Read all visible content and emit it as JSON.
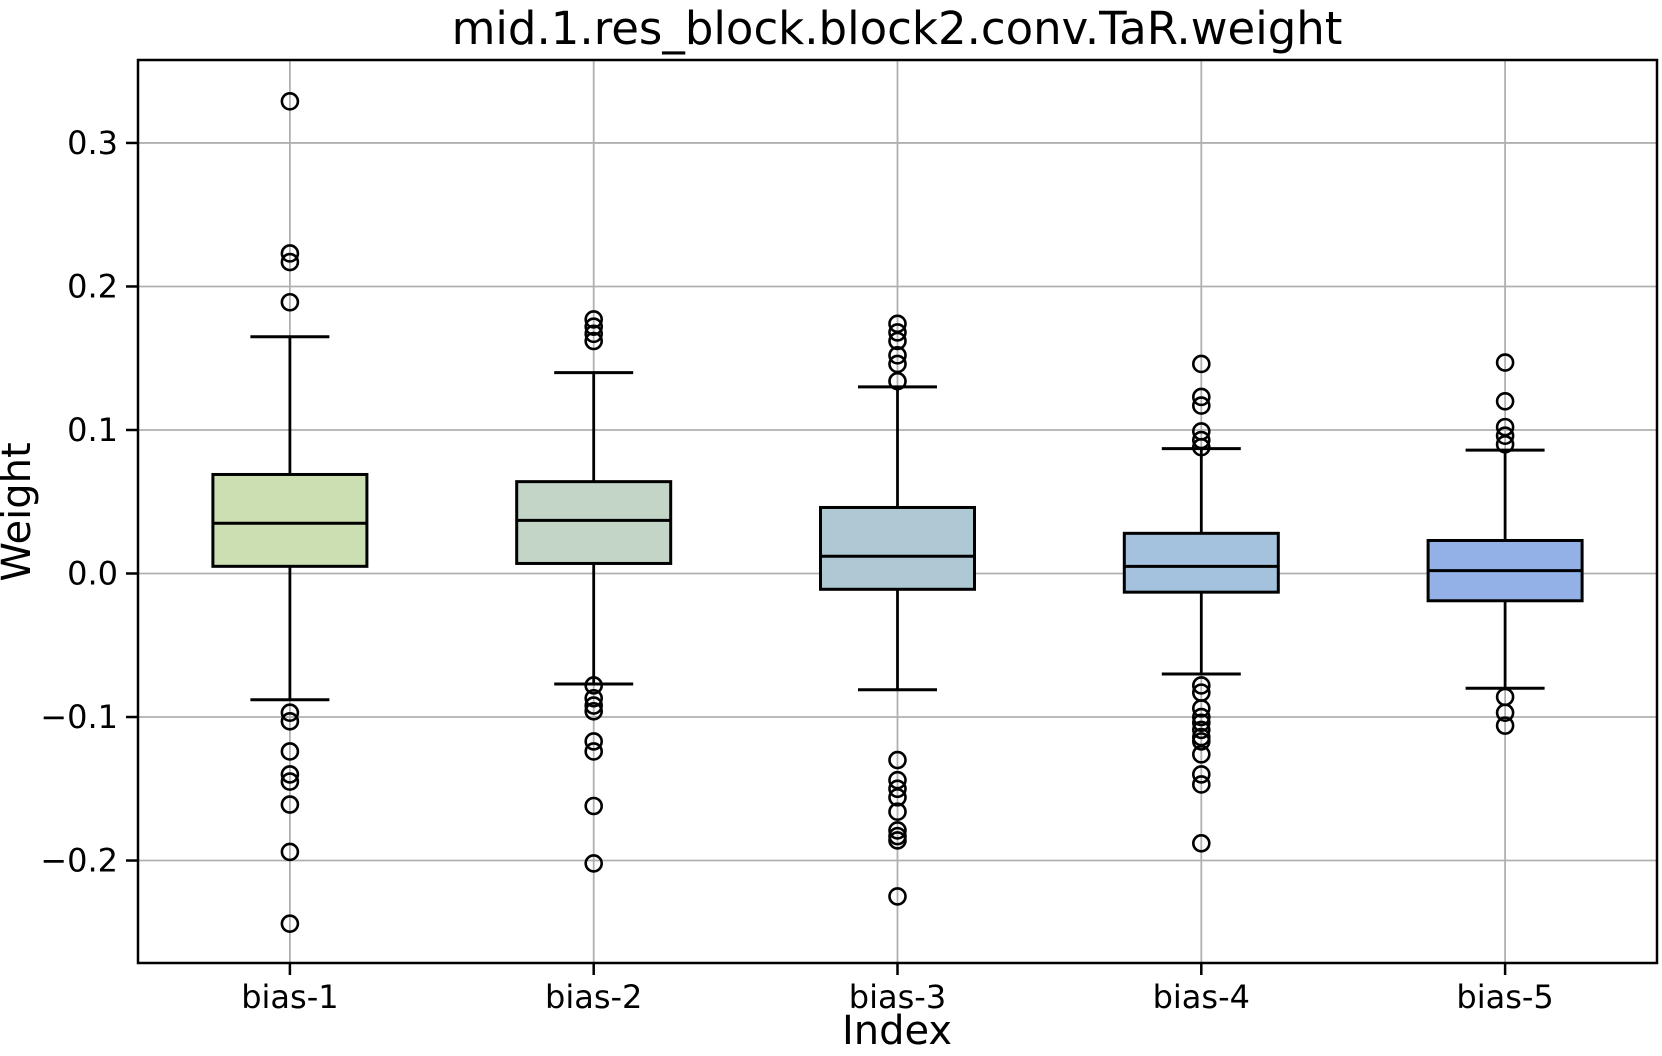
{
  "chart_data": {
    "type": "boxplot",
    "title": "mid.1.res_block.block2.conv.TaR.weight",
    "xlabel": "Index",
    "ylabel": "Weight",
    "categories": [
      "bias-1",
      "bias-2",
      "bias-3",
      "bias-4",
      "bias-5"
    ],
    "ylim": [
      -0.2714,
      0.3578
    ],
    "grid": true,
    "legend": "none",
    "yticks": [
      {
        "value": 0.3,
        "label": "0.3"
      },
      {
        "value": 0.2,
        "label": "0.2"
      },
      {
        "value": 0.1,
        "label": "0.1"
      },
      {
        "value": 0.0,
        "label": "0.0"
      },
      {
        "value": -0.1,
        "label": "−0.1"
      },
      {
        "value": -0.2,
        "label": "−0.2"
      }
    ],
    "series": [
      {
        "name": "bias-1",
        "whisker_low": -0.088,
        "q1": 0.005,
        "median": 0.035,
        "q3": 0.069,
        "whisker_high": 0.165,
        "outliers_high": [
          0.329,
          0.223,
          0.217,
          0.189
        ],
        "outliers_low": [
          -0.097,
          -0.103,
          -0.124,
          -0.14,
          -0.145,
          -0.161,
          -0.194,
          -0.244
        ],
        "fill": "#ccdfb2"
      },
      {
        "name": "bias-2",
        "whisker_low": -0.077,
        "q1": 0.007,
        "median": 0.037,
        "q3": 0.064,
        "whisker_high": 0.14,
        "outliers_high": [
          0.177,
          0.172,
          0.167,
          0.162
        ],
        "outliers_low": [
          -0.078,
          -0.087,
          -0.092,
          -0.096,
          -0.117,
          -0.124,
          -0.162,
          -0.202
        ],
        "fill": "#c3d5c6"
      },
      {
        "name": "bias-3",
        "whisker_low": -0.081,
        "q1": -0.011,
        "median": 0.012,
        "q3": 0.046,
        "whisker_high": 0.13,
        "outliers_high": [
          0.174,
          0.168,
          0.162,
          0.152,
          0.146,
          0.134
        ],
        "outliers_low": [
          -0.13,
          -0.144,
          -0.15,
          -0.156,
          -0.166,
          -0.179,
          -0.183,
          -0.186,
          -0.225
        ],
        "fill": "#aec9d4"
      },
      {
        "name": "bias-4",
        "whisker_low": -0.07,
        "q1": -0.013,
        "median": 0.005,
        "q3": 0.028,
        "whisker_high": 0.087,
        "outliers_high": [
          0.146,
          0.123,
          0.117,
          0.099,
          0.093,
          0.088
        ],
        "outliers_low": [
          -0.078,
          -0.083,
          -0.094,
          -0.1,
          -0.104,
          -0.109,
          -0.114,
          -0.117,
          -0.126,
          -0.14,
          -0.147,
          -0.188
        ],
        "fill": "#a4c2de"
      },
      {
        "name": "bias-5",
        "whisker_low": -0.08,
        "q1": -0.019,
        "median": 0.002,
        "q3": 0.023,
        "whisker_high": 0.086,
        "outliers_high": [
          0.147,
          0.12,
          0.102,
          0.096,
          0.09
        ],
        "outliers_low": [
          -0.086,
          -0.097,
          -0.106
        ],
        "fill": "#93b1e7"
      }
    ],
    "style": {
      "background": "#ffffff",
      "box_edge_color": "#000000",
      "median_color": "#000000",
      "whisker_color": "#000000",
      "outlier_color": "#000000",
      "grid_color": "#b0b0b0",
      "spine_color": "#000000"
    }
  }
}
